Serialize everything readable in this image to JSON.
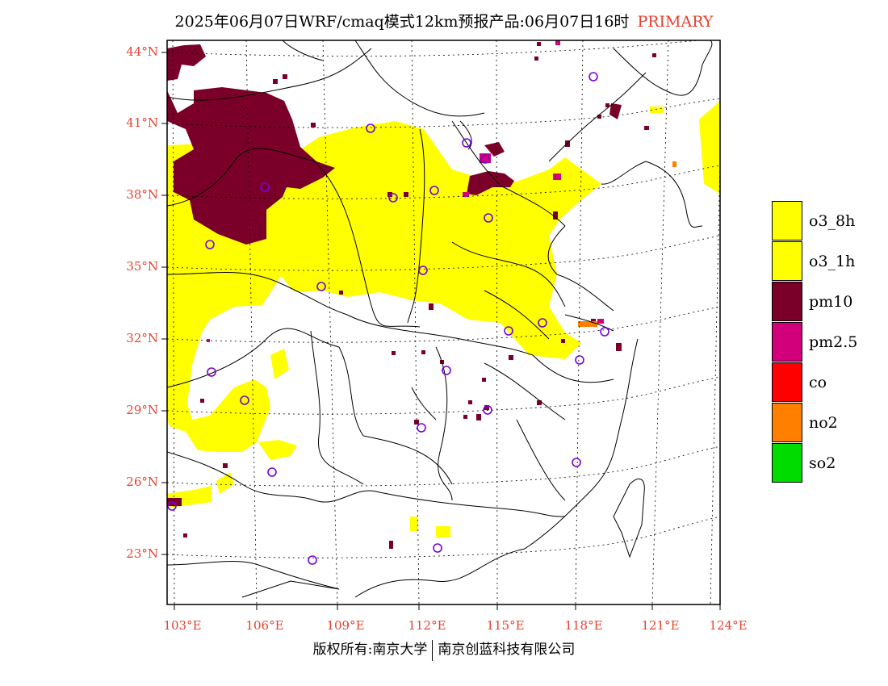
{
  "title": {
    "main": "2025年06月07日WRF/cmaq模式12km预报产品:06月07日16时",
    "tag": "PRIMARY"
  },
  "axes": {
    "lat_labels": [
      "44°N",
      "41°N",
      "38°N",
      "35°N",
      "32°N",
      "29°N",
      "26°N",
      "23°N"
    ],
    "lon_labels": [
      "103°E",
      "106°E",
      "109°E",
      "112°E",
      "115°E",
      "118°E",
      "121°E",
      "124°E"
    ]
  },
  "legend": [
    {
      "label": "o3_8h",
      "color": "#ffff00"
    },
    {
      "label": "o3_1h",
      "color": "#ffff00"
    },
    {
      "label": "pm10",
      "color": "#7b0029"
    },
    {
      "label": "pm2.5",
      "color": "#d2007a"
    },
    {
      "label": "co",
      "color": "#ff0000"
    },
    {
      "label": "no2",
      "color": "#ff7f00"
    },
    {
      "label": "so2",
      "color": "#00dc00"
    }
  ],
  "footer": {
    "left": "版权所有:南京大学",
    "right": "南京创蓝科技有限公司"
  }
}
